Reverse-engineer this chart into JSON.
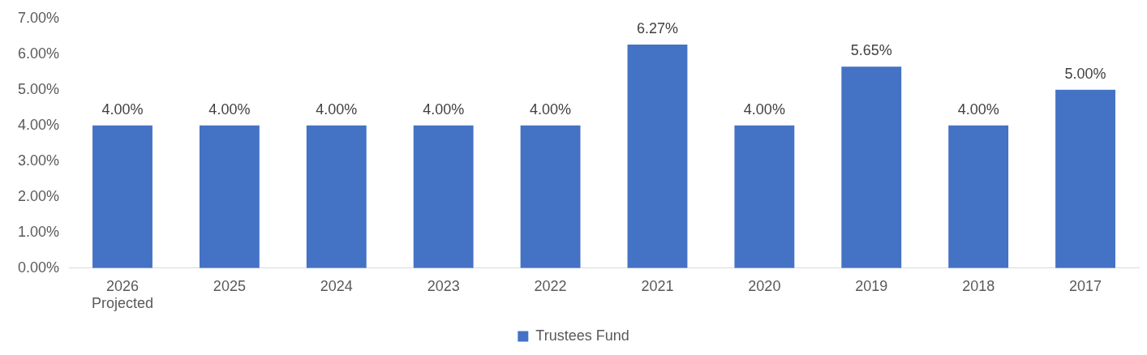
{
  "chart_data": {
    "type": "bar",
    "categories": [
      "2026 Projected",
      "2025",
      "2024",
      "2023",
      "2022",
      "2021",
      "2020",
      "2019",
      "2018",
      "2017"
    ],
    "series": [
      {
        "name": "Trustees Fund",
        "color": "#4472c4",
        "values": [
          4.0,
          4.0,
          4.0,
          4.0,
          4.0,
          6.27,
          4.0,
          5.65,
          4.0,
          5.0
        ]
      }
    ],
    "value_labels": [
      "4.00%",
      "4.00%",
      "4.00%",
      "4.00%",
      "4.00%",
      "6.27%",
      "4.00%",
      "5.65%",
      "4.00%",
      "5.00%"
    ],
    "ylim": [
      0,
      7
    ],
    "yticks": [
      {
        "value": 0,
        "label": "0.00%"
      },
      {
        "value": 1,
        "label": "1.00%"
      },
      {
        "value": 2,
        "label": "2.00%"
      },
      {
        "value": 3,
        "label": "3.00%"
      },
      {
        "value": 4,
        "label": "4.00%"
      },
      {
        "value": 5,
        "label": "5.00%"
      },
      {
        "value": 6,
        "label": "6.00%"
      },
      {
        "value": 7,
        "label": "7.00%"
      }
    ],
    "grid": false,
    "legend": "bottom"
  }
}
